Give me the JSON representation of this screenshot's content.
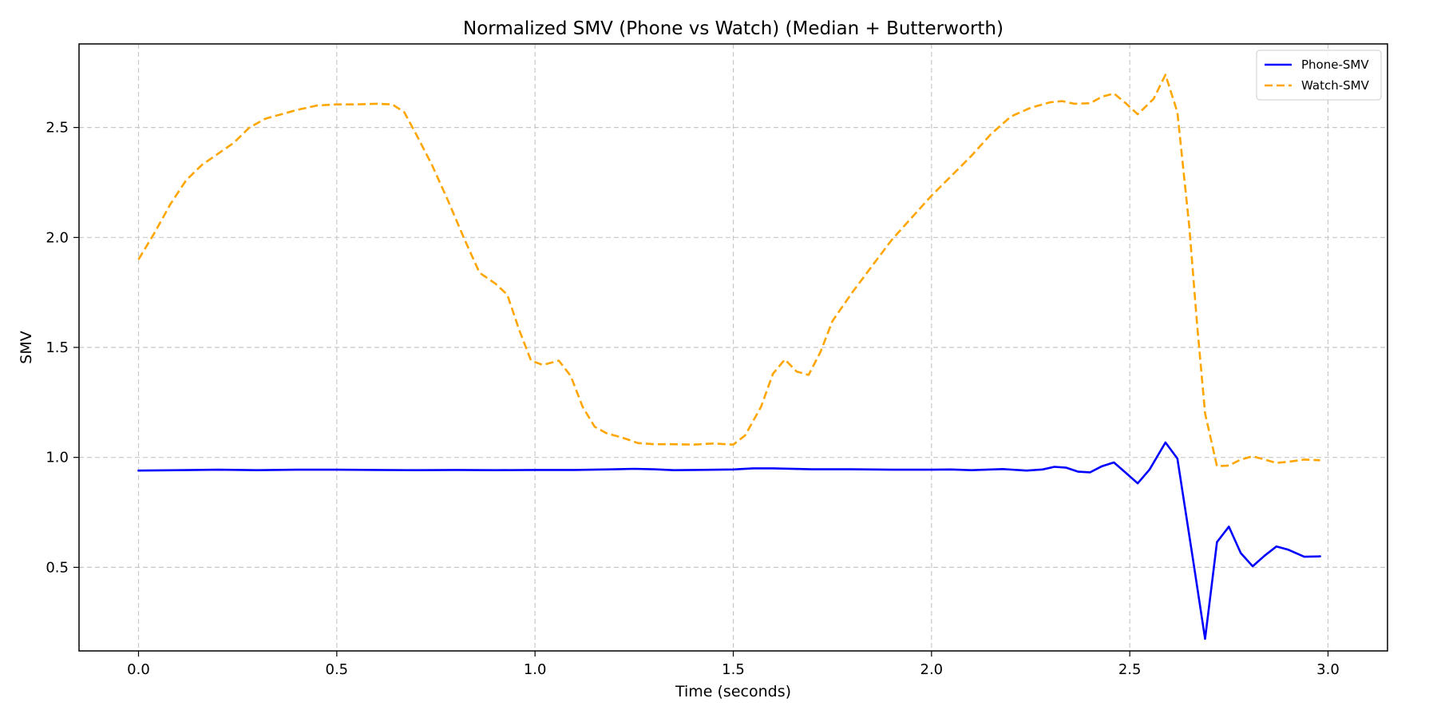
{
  "chart_data": {
    "type": "line",
    "title": "Normalized SMV (Phone vs Watch) (Median + Butterworth)",
    "xlabel": "Time (seconds)",
    "ylabel": "SMV",
    "xlim": [
      -0.15,
      3.15
    ],
    "ylim": [
      0.12,
      2.88
    ],
    "xticks": [
      0.0,
      0.5,
      1.0,
      1.5,
      2.0,
      2.5,
      3.0
    ],
    "xtick_labels": [
      "0.0",
      "0.5",
      "1.0",
      "1.5",
      "2.0",
      "2.5",
      "3.0"
    ],
    "yticks": [
      0.5,
      1.0,
      1.5,
      2.0,
      2.5
    ],
    "ytick_labels": [
      "0.5",
      "1.0",
      "1.5",
      "2.0",
      "2.5"
    ],
    "grid": true,
    "legend_position": "top-right",
    "series": [
      {
        "name": "Phone-SMV",
        "color": "#0000ff",
        "dash": "solid",
        "points": [
          [
            0.0,
            0.94
          ],
          [
            0.1,
            0.942
          ],
          [
            0.2,
            0.944
          ],
          [
            0.3,
            0.942
          ],
          [
            0.4,
            0.944
          ],
          [
            0.5,
            0.944
          ],
          [
            0.6,
            0.943
          ],
          [
            0.7,
            0.942
          ],
          [
            0.8,
            0.943
          ],
          [
            0.9,
            0.942
          ],
          [
            1.0,
            0.943
          ],
          [
            1.1,
            0.943
          ],
          [
            1.2,
            0.946
          ],
          [
            1.25,
            0.948
          ],
          [
            1.3,
            0.946
          ],
          [
            1.35,
            0.942
          ],
          [
            1.4,
            0.943
          ],
          [
            1.5,
            0.945
          ],
          [
            1.55,
            0.95
          ],
          [
            1.6,
            0.95
          ],
          [
            1.7,
            0.946
          ],
          [
            1.8,
            0.946
          ],
          [
            1.9,
            0.944
          ],
          [
            2.0,
            0.944
          ],
          [
            2.05,
            0.945
          ],
          [
            2.1,
            0.942
          ],
          [
            2.18,
            0.947
          ],
          [
            2.24,
            0.94
          ],
          [
            2.28,
            0.945
          ],
          [
            2.31,
            0.957
          ],
          [
            2.34,
            0.953
          ],
          [
            2.37,
            0.935
          ],
          [
            2.4,
            0.932
          ],
          [
            2.43,
            0.96
          ],
          [
            2.46,
            0.977
          ],
          [
            2.49,
            0.93
          ],
          [
            2.52,
            0.882
          ],
          [
            2.55,
            0.945
          ],
          [
            2.59,
            1.068
          ],
          [
            2.62,
            0.995
          ],
          [
            2.66,
            0.53
          ],
          [
            2.69,
            0.175
          ],
          [
            2.72,
            0.615
          ],
          [
            2.75,
            0.685
          ],
          [
            2.78,
            0.565
          ],
          [
            2.81,
            0.505
          ],
          [
            2.84,
            0.553
          ],
          [
            2.87,
            0.595
          ],
          [
            2.9,
            0.58
          ],
          [
            2.94,
            0.548
          ],
          [
            2.98,
            0.55
          ]
        ]
      },
      {
        "name": "Watch-SMV",
        "color": "#ffa500",
        "dash": "dashed",
        "points": [
          [
            0.0,
            1.9
          ],
          [
            0.04,
            2.02
          ],
          [
            0.08,
            2.15
          ],
          [
            0.12,
            2.26
          ],
          [
            0.16,
            2.33
          ],
          [
            0.2,
            2.38
          ],
          [
            0.24,
            2.43
          ],
          [
            0.28,
            2.5
          ],
          [
            0.32,
            2.54
          ],
          [
            0.36,
            2.56
          ],
          [
            0.4,
            2.58
          ],
          [
            0.45,
            2.6
          ],
          [
            0.5,
            2.605
          ],
          [
            0.55,
            2.605
          ],
          [
            0.6,
            2.608
          ],
          [
            0.64,
            2.605
          ],
          [
            0.67,
            2.57
          ],
          [
            0.7,
            2.47
          ],
          [
            0.74,
            2.33
          ],
          [
            0.78,
            2.17
          ],
          [
            0.82,
            2.0
          ],
          [
            0.86,
            1.84
          ],
          [
            0.9,
            1.79
          ],
          [
            0.93,
            1.74
          ],
          [
            0.96,
            1.58
          ],
          [
            0.99,
            1.44
          ],
          [
            1.02,
            1.42
          ],
          [
            1.06,
            1.44
          ],
          [
            1.09,
            1.37
          ],
          [
            1.12,
            1.23
          ],
          [
            1.15,
            1.14
          ],
          [
            1.18,
            1.11
          ],
          [
            1.22,
            1.09
          ],
          [
            1.26,
            1.065
          ],
          [
            1.3,
            1.06
          ],
          [
            1.35,
            1.06
          ],
          [
            1.4,
            1.058
          ],
          [
            1.45,
            1.063
          ],
          [
            1.5,
            1.058
          ],
          [
            1.53,
            1.1
          ],
          [
            1.57,
            1.23
          ],
          [
            1.6,
            1.38
          ],
          [
            1.63,
            1.445
          ],
          [
            1.66,
            1.39
          ],
          [
            1.69,
            1.375
          ],
          [
            1.72,
            1.48
          ],
          [
            1.75,
            1.62
          ],
          [
            1.8,
            1.75
          ],
          [
            1.85,
            1.87
          ],
          [
            1.9,
            1.99
          ],
          [
            1.95,
            2.09
          ],
          [
            2.0,
            2.19
          ],
          [
            2.05,
            2.28
          ],
          [
            2.1,
            2.37
          ],
          [
            2.15,
            2.47
          ],
          [
            2.2,
            2.55
          ],
          [
            2.25,
            2.59
          ],
          [
            2.3,
            2.615
          ],
          [
            2.33,
            2.62
          ],
          [
            2.36,
            2.608
          ],
          [
            2.4,
            2.61
          ],
          [
            2.43,
            2.64
          ],
          [
            2.46,
            2.655
          ],
          [
            2.49,
            2.61
          ],
          [
            2.52,
            2.56
          ],
          [
            2.56,
            2.63
          ],
          [
            2.59,
            2.74
          ],
          [
            2.62,
            2.57
          ],
          [
            2.65,
            2.05
          ],
          [
            2.67,
            1.6
          ],
          [
            2.69,
            1.2
          ],
          [
            2.72,
            0.96
          ],
          [
            2.75,
            0.963
          ],
          [
            2.78,
            0.99
          ],
          [
            2.81,
            1.005
          ],
          [
            2.84,
            0.99
          ],
          [
            2.87,
            0.975
          ],
          [
            2.9,
            0.98
          ],
          [
            2.94,
            0.99
          ],
          [
            2.98,
            0.987
          ]
        ]
      }
    ]
  }
}
